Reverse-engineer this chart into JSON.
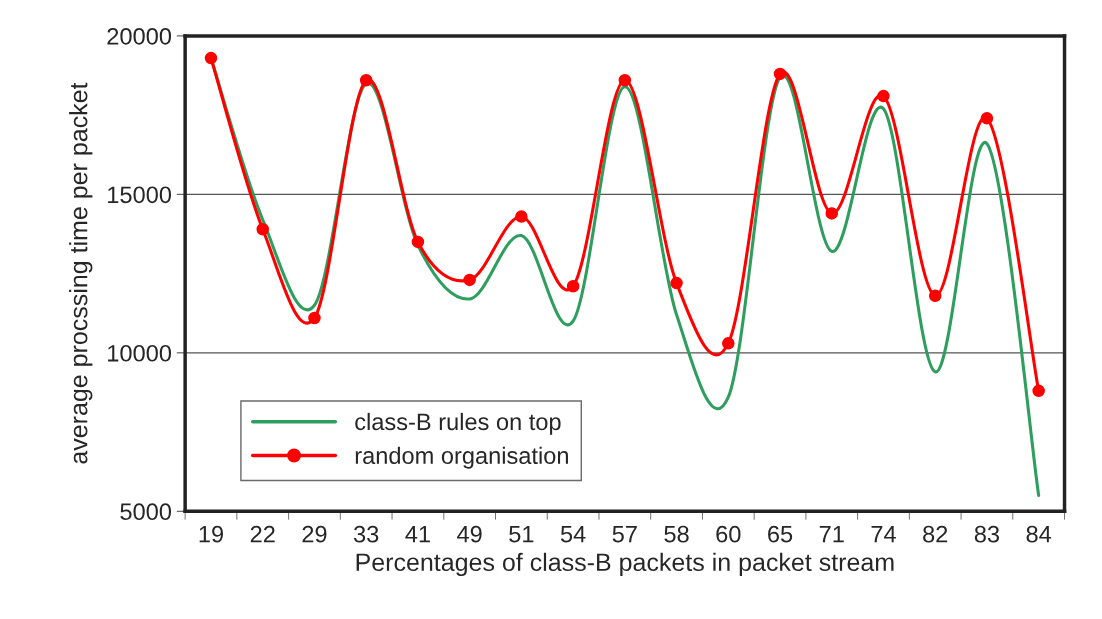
{
  "chart_data": {
    "type": "line",
    "xlabel": "Percentages of class-B packets in packet stream",
    "ylabel": "average procssing time per packet",
    "categories": [
      "19",
      "22",
      "29",
      "33",
      "41",
      "49",
      "51",
      "54",
      "57",
      "58",
      "60",
      "65",
      "71",
      "74",
      "82",
      "83",
      "84"
    ],
    "series": [
      {
        "name": "class-B rules on top",
        "color": "#2e9e5e",
        "marker": "none",
        "values": [
          19300,
          14200,
          11500,
          18500,
          13400,
          11700,
          13700,
          11000,
          18400,
          11200,
          8600,
          18700,
          13200,
          17700,
          9400,
          16600,
          5500
        ]
      },
      {
        "name": "random organisation",
        "color": "#ff0000",
        "marker": "circle",
        "values": [
          19300,
          13900,
          11100,
          18600,
          13500,
          12300,
          14300,
          12100,
          18600,
          12200,
          10300,
          18800,
          14400,
          18100,
          11800,
          17400,
          8800
        ]
      }
    ],
    "ylim": [
      5000,
      20000
    ],
    "yticks": [
      5000,
      10000,
      15000,
      20000
    ],
    "grid": "y",
    "legend": "bottom left",
    "line_style": "solid"
  }
}
